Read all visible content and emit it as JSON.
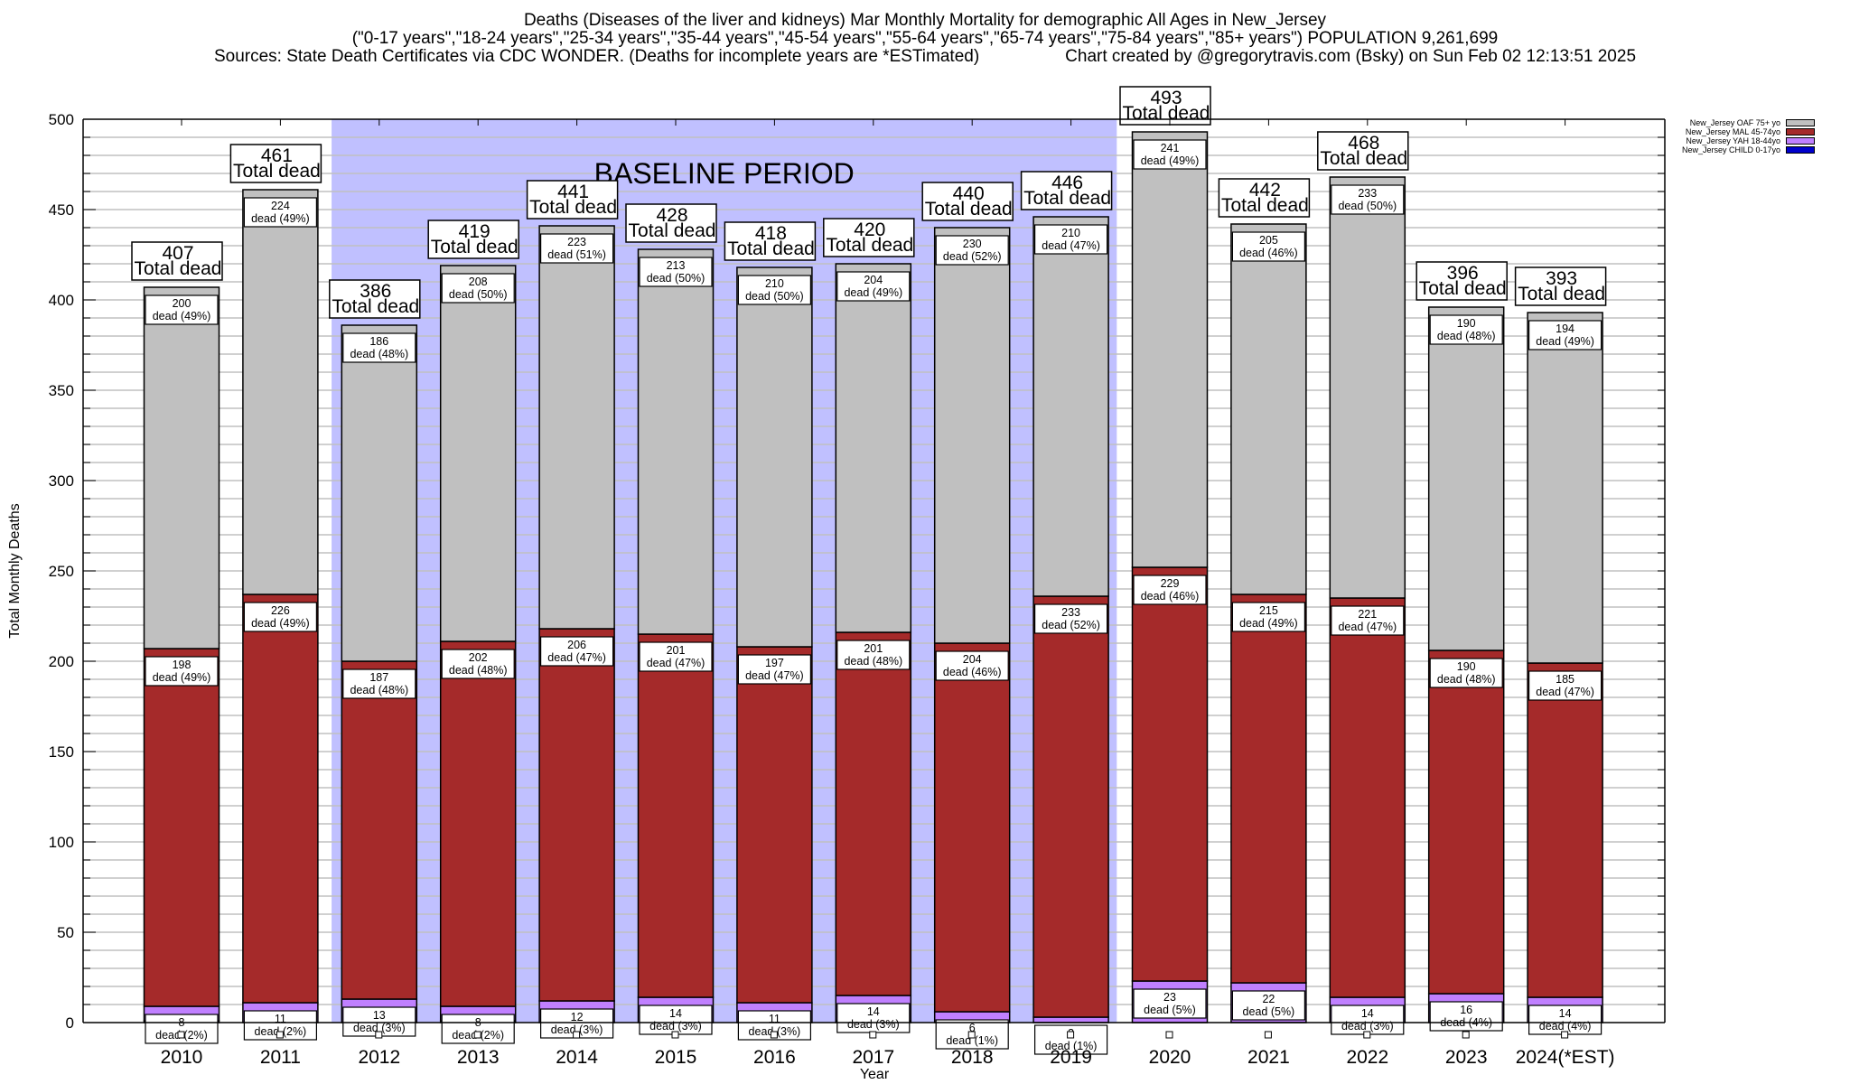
{
  "header": {
    "title": "Deaths (Diseases of the liver and kidneys) Mar Monthly Mortality for demographic All Ages in New_Jersey",
    "subtitle": "(\"0-17 years\",\"18-24 years\",\"25-34 years\",\"35-44 years\",\"45-54 years\",\"55-64 years\",\"65-74 years\",\"75-84 years\",\"85+ years\") POPULATION 9,261,699",
    "sources": "Sources: State Death Certificates via CDC WONDER. (Deaths for incomplete years are *ESTimated)",
    "credit": "Chart created by @gregorytravis.com (Bsky) on Sun Feb 02 12:13:51 2025"
  },
  "chart_data": {
    "type": "bar",
    "stacked": true,
    "title": "Deaths (Diseases of the liver and kidneys) Mar Monthly Mortality for demographic All Ages in New_Jersey",
    "xlabel": "Year",
    "ylabel": "Total Monthly Deaths",
    "ylim": [
      0,
      500
    ],
    "yticks": [
      0,
      50,
      100,
      150,
      200,
      250,
      300,
      350,
      400,
      450,
      500
    ],
    "grid": true,
    "legend_position": "top-right",
    "annotation": "BASELINE PERIOD",
    "baseline_period": [
      "2012",
      "2019"
    ],
    "total_label_suffix": "Total dead",
    "segment_label_prefix": "dead",
    "categories": [
      "2010",
      "2011",
      "2012",
      "2013",
      "2014",
      "2015",
      "2016",
      "2017",
      "2018",
      "2019",
      "2020",
      "2021",
      "2022",
      "2023",
      "2024(*EST)"
    ],
    "totals": [
      407,
      461,
      386,
      419,
      441,
      428,
      418,
      420,
      440,
      446,
      493,
      442,
      468,
      396,
      393
    ],
    "series": [
      {
        "name": "New_Jersey CHILD 0-17yo",
        "color": "#0000cc",
        "values": [
          1,
          0,
          0,
          1,
          0,
          0,
          0,
          1,
          0,
          0,
          0,
          0,
          0,
          0,
          0
        ],
        "labels": false
      },
      {
        "name": "New_Jersey YAH 18-44yo",
        "color": "#c080ff",
        "values": [
          8,
          11,
          13,
          8,
          12,
          14,
          11,
          14,
          6,
          3,
          23,
          22,
          14,
          16,
          14
        ],
        "percents": [
          2,
          2,
          3,
          2,
          3,
          3,
          3,
          3,
          1,
          1,
          5,
          5,
          3,
          4,
          4
        ],
        "labels": true
      },
      {
        "name": "New_Jersey MAL 45-74yo",
        "color": "#a52a2a",
        "values": [
          198,
          226,
          187,
          202,
          206,
          201,
          197,
          201,
          204,
          233,
          229,
          215,
          221,
          190,
          185
        ],
        "percents": [
          49,
          49,
          48,
          48,
          47,
          47,
          47,
          48,
          46,
          52,
          46,
          49,
          47,
          48,
          47
        ],
        "labels": true
      },
      {
        "name": "New_Jersey OAF 75+ yo",
        "color": "#c0c0c0",
        "values": [
          200,
          224,
          186,
          208,
          223,
          213,
          210,
          204,
          230,
          210,
          241,
          205,
          233,
          190,
          194
        ],
        "percents": [
          49,
          49,
          48,
          50,
          51,
          50,
          50,
          49,
          52,
          47,
          49,
          46,
          50,
          48,
          49
        ],
        "labels": true
      }
    ],
    "legend_order": [
      "New_Jersey OAF 75+ yo",
      "New_Jersey MAL 45-74yo",
      "New_Jersey YAH 18-44yo",
      "New_Jersey CHILD 0-17yo"
    ],
    "colors": {
      "baseline_shade": "#c0c0ff",
      "grid": "#c0c0c0"
    }
  }
}
